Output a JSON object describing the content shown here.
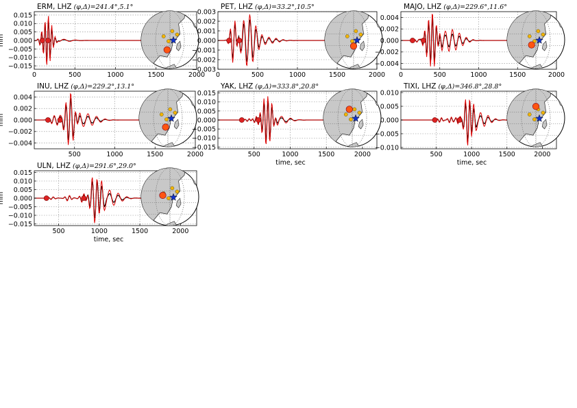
{
  "figure": {
    "component": "LHZ",
    "units_label": "mm",
    "time_label": "time, sec"
  },
  "chart_data": [
    {
      "type": "line",
      "station": "ERM",
      "title": "ERM, LHZ",
      "title_params": "(φ,Δ)=241.4°,5.1°",
      "xlim": [
        0,
        2000
      ],
      "xticks": [
        0,
        500,
        1000,
        1500,
        2000
      ],
      "ylim": [
        -0.017,
        0.017
      ],
      "yticks": [
        -0.015,
        -0.01,
        -0.005,
        0.0,
        0.005,
        0.01,
        0.015
      ],
      "ytick_labels": [
        "−0.015",
        "−0.010",
        "−0.005",
        "0.000",
        "0.005",
        "0.010",
        "0.015"
      ],
      "ylabel": "mm",
      "xlabel": "",
      "peak_amplitude": 0.0155,
      "phase_markers": [
        {
          "time": 100,
          "color": "#dd2222"
        },
        {
          "time": 170,
          "color": "#dd2222"
        }
      ],
      "series": [
        {
          "color": "#000000"
        },
        {
          "color": "#dd0000"
        }
      ]
    },
    {
      "type": "line",
      "station": "PET",
      "title": "PET, LHZ",
      "title_params": "(φ,Δ)=33.2°,10.5°",
      "xlim": [
        0,
        2000
      ],
      "xticks": [
        0,
        500,
        1000,
        1500,
        2000
      ],
      "ylim": [
        -0.003,
        0.003
      ],
      "yticks": [
        -0.003,
        -0.002,
        -0.001,
        0.0,
        0.001,
        0.002,
        0.003
      ],
      "ytick_labels": [
        "−0.003",
        "−0.002",
        "−0.001",
        "0.000",
        "0.001",
        "0.002",
        "0.003"
      ],
      "ylabel": "",
      "xlabel": "",
      "peak_amplitude": 0.0028,
      "phase_markers": [
        {
          "time": 140,
          "color": "#dd2222"
        },
        {
          "time": 270,
          "color": "#dd2222"
        }
      ],
      "series": [
        {
          "color": "#000000"
        },
        {
          "color": "#dd0000"
        }
      ]
    },
    {
      "type": "line",
      "station": "MAJO",
      "title": "MAJO, LHZ",
      "title_params": "(φ,Δ)=229.6°,11.6°",
      "xlim": [
        0,
        2000
      ],
      "xticks": [
        0,
        500,
        1000,
        1500,
        2000
      ],
      "ylim": [
        -0.005,
        0.005
      ],
      "yticks": [
        -0.004,
        -0.002,
        0.0,
        0.002,
        0.004
      ],
      "ytick_labels": [
        "−0.004",
        "−0.002",
        "0.000",
        "0.002",
        "0.004"
      ],
      "ylabel": "",
      "xlabel": "",
      "peak_amplitude": 0.0048,
      "phase_markers": [
        {
          "time": 150,
          "color": "#dd2222"
        },
        {
          "time": 290,
          "color": "#dd2222"
        }
      ],
      "series": [
        {
          "color": "#000000"
        },
        {
          "color": "#dd0000"
        }
      ]
    },
    {
      "type": "line",
      "station": "INU",
      "title": "INU, LHZ",
      "title_params": "(φ,Δ)=229.2°,13.1°",
      "xlim": [
        0,
        2000
      ],
      "xticks": [
        500,
        1000,
        1500,
        2000
      ],
      "ylim": [
        -0.005,
        0.005
      ],
      "yticks": [
        -0.004,
        -0.002,
        0.0,
        0.002,
        0.004
      ],
      "ytick_labels": [
        "−0.004",
        "−0.002",
        "0.000",
        "0.002",
        "0.004"
      ],
      "ylabel": "mm",
      "xlabel": "",
      "peak_amplitude": 0.0045,
      "phase_markers": [
        {
          "time": 170,
          "color": "#dd2222"
        },
        {
          "time": 320,
          "color": "#dd2222"
        }
      ],
      "series": [
        {
          "color": "#000000"
        },
        {
          "color": "#dd0000"
        }
      ]
    },
    {
      "type": "line",
      "station": "YAK",
      "title": "YAK, LHZ",
      "title_params": "(φ,Δ)=333.8°,20.8°",
      "xlim": [
        0,
        2200
      ],
      "xticks": [
        500,
        1000,
        1500,
        2000
      ],
      "ylim": [
        -0.016,
        0.016
      ],
      "yticks": [
        -0.015,
        -0.01,
        -0.005,
        0.0,
        0.005,
        0.01,
        0.015
      ],
      "ytick_labels": [
        "−0.015",
        "−0.010",
        "−0.005",
        "0.000",
        "0.005",
        "0.010",
        "0.015"
      ],
      "ylabel": "",
      "xlabel": "time, sec",
      "peak_amplitude": 0.0145,
      "phase_markers": [
        {
          "time": 330,
          "color": "#dd2222"
        },
        {
          "time": 560,
          "color": "#dd2222"
        }
      ],
      "series": [
        {
          "color": "#000000"
        },
        {
          "color": "#dd0000"
        }
      ]
    },
    {
      "type": "line",
      "station": "TIXI",
      "title": "TIXI, LHZ",
      "title_params": "(φ,Δ)=346.8°,28.8°",
      "xlim": [
        0,
        2200
      ],
      "xticks": [
        500,
        1000,
        1500,
        2000
      ],
      "ylim": [
        -0.0105,
        0.0105
      ],
      "yticks": [
        -0.01,
        -0.005,
        0.0,
        0.005,
        0.01
      ],
      "ytick_labels": [
        "−0.010",
        "−0.005",
        "0.000",
        "0.005",
        "0.010"
      ],
      "ylabel": "",
      "xlabel": "time, sec",
      "peak_amplitude": 0.0095,
      "phase_markers": [
        {
          "time": 480,
          "color": "#dd2222"
        },
        {
          "time": 830,
          "color": "#dd2222"
        }
      ],
      "series": [
        {
          "color": "#000000"
        },
        {
          "color": "#dd0000"
        }
      ]
    },
    {
      "type": "line",
      "station": "ULN",
      "title": "ULN, LHZ",
      "title_params": "(φ,Δ)=291.6°,29.0°",
      "xlim": [
        200,
        2200
      ],
      "xticks": [
        500,
        1000,
        1500,
        2000
      ],
      "ylim": [
        -0.016,
        0.016
      ],
      "yticks": [
        -0.015,
        -0.01,
        -0.005,
        0.0,
        0.005,
        0.01,
        0.015
      ],
      "ytick_labels": [
        "−0.015",
        "−0.010",
        "−0.005",
        "0.000",
        "0.005",
        "0.010",
        "0.015"
      ],
      "ylabel": "mm",
      "xlabel": "time, sec",
      "peak_amplitude": 0.0145,
      "phase_markers": [
        {
          "time": 350,
          "color": "#dd2222"
        },
        {
          "time": 810,
          "color": "#dd2222"
        }
      ],
      "series": [
        {
          "color": "#000000"
        },
        {
          "color": "#dd0000"
        }
      ]
    }
  ],
  "colors": {
    "observed": "#000000",
    "synthetic": "#dd0000",
    "phase_marker": "#dd2222",
    "station_marker": "#ff5511",
    "event_marker": "#1133cc",
    "other_station": "#f4b400"
  }
}
